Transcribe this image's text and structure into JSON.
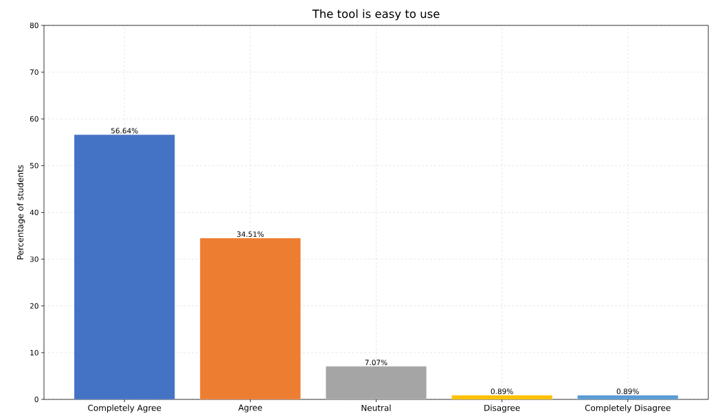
{
  "chart_data": {
    "type": "bar",
    "title": "The tool is easy to use",
    "ylabel": "Percentage of students",
    "categories": [
      "Completely Agree",
      "Agree",
      "Neutral",
      "Disagree",
      "Completely Disagree"
    ],
    "values": [
      56.64,
      34.51,
      7.07,
      0.89,
      0.89
    ],
    "colors": [
      "#4472c4",
      "#ed7d31",
      "#a5a5a5",
      "#ffc000",
      "#5b9bd5"
    ],
    "value_labels": [
      "56.64%",
      "34.51%",
      "7.07%",
      "0.89%",
      "0.89%"
    ],
    "ylim": [
      0,
      80
    ],
    "yticks": [
      0,
      10,
      20,
      30,
      40,
      50,
      60,
      70,
      80
    ],
    "grid": true
  }
}
